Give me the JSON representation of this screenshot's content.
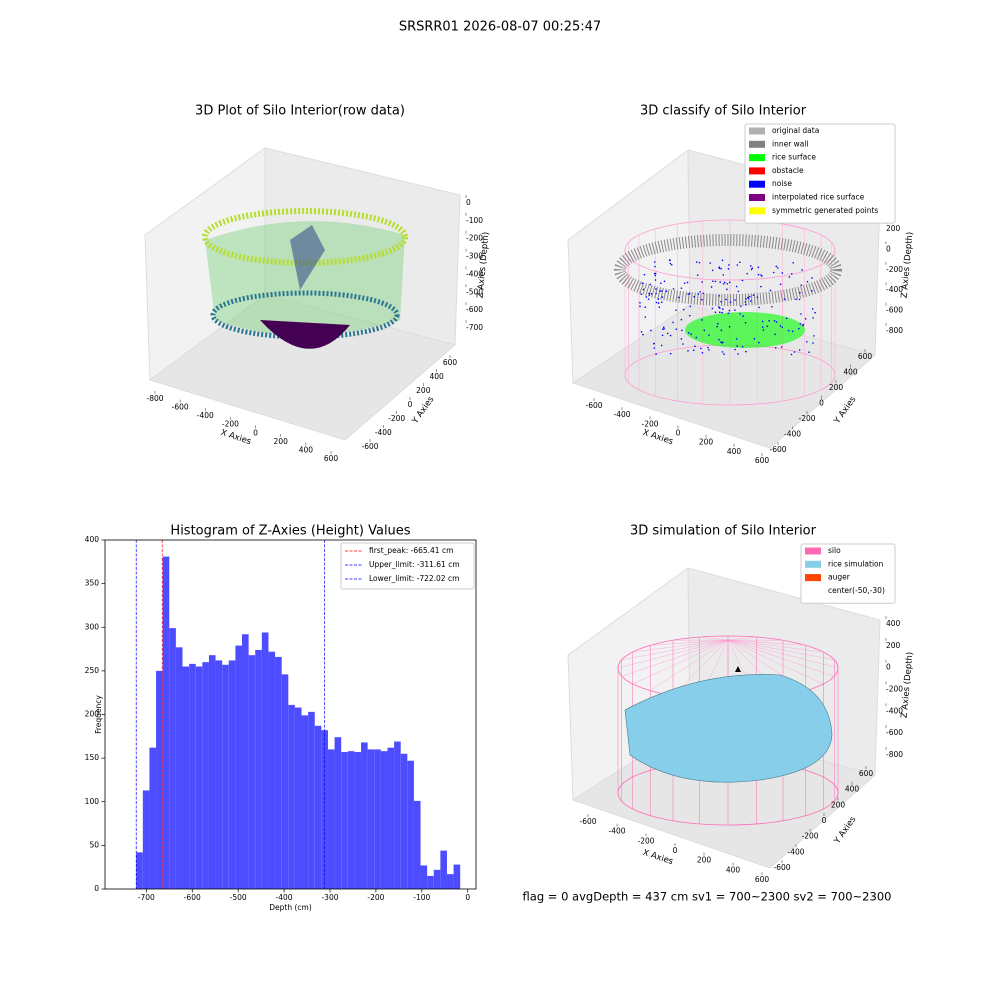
{
  "title": "SRSRR01 2026-08-07 00:25:47",
  "footer": "flag = 0     avgDepth = 437 cm  sv1 = 700~2300  sv2 = 700~2300",
  "chart_data": [
    {
      "type": "scatter3d",
      "title": "3D Plot of Silo Interior(row data)",
      "xlabel": "X Axies",
      "ylabel": "Y Axies",
      "zlabel": "Z Axies (Depth)",
      "xlim": [
        -800,
        600
      ],
      "xticks": [
        -800,
        -600,
        -400,
        -200,
        0,
        200,
        400,
        600
      ],
      "ylim": [
        -600,
        600
      ],
      "yticks": [
        -600,
        -400,
        -200,
        0,
        200,
        400,
        600
      ],
      "zlim": [
        0,
        -700
      ],
      "zticks": [
        0,
        -100,
        -200,
        -300,
        -400,
        -500,
        -600,
        -700
      ]
    },
    {
      "type": "scatter3d",
      "title": "3D classify of Silo Interior",
      "xlabel": "X Axies",
      "ylabel": "Y Axies",
      "zlabel": "Z Axies (Depth)",
      "xlim": [
        -600,
        600
      ],
      "xticks": [
        -600,
        -400,
        -200,
        0,
        200,
        400,
        600
      ],
      "ylim": [
        -600,
        600
      ],
      "yticks": [
        -600,
        -400,
        -200,
        0,
        200,
        400,
        600
      ],
      "zlim": [
        -800,
        200
      ],
      "zticks": [
        -800,
        -600,
        -400,
        -200,
        0,
        200
      ],
      "legend": "upper right",
      "series": [
        {
          "name": "original data",
          "color": "#b0b0b0"
        },
        {
          "name": "inner wall",
          "color": "#808080"
        },
        {
          "name": "rice surface",
          "color": "#00ff00"
        },
        {
          "name": "obstacle",
          "color": "#ff0000"
        },
        {
          "name": "noise",
          "color": "#0000ff"
        },
        {
          "name": "interpolated rice surface",
          "color": "#800080"
        },
        {
          "name": "symmetric generated points",
          "color": "#ffff00"
        }
      ]
    },
    {
      "type": "histogram",
      "title": "Histogram of Z-Axies (Height) Values",
      "xlabel": "Depth (cm)",
      "ylabel": "Frequency",
      "color": "#4d4dff",
      "bins": [
        -722,
        -707.6,
        -693.2,
        -678.8,
        -664.4,
        -650,
        -635.6,
        -621.2,
        -606.8,
        -592.4,
        -578,
        -563.6,
        -549.2,
        -534.8,
        -520.4,
        -506,
        -491.6,
        -477.2,
        -462.8,
        -448.4,
        -434,
        -419.6,
        -405.2,
        -390.8,
        -376.4,
        -362,
        -347.6,
        -333.2,
        -318.8,
        -304.4,
        -290,
        -275.6,
        -261.2,
        -246.8,
        -232.4,
        -218,
        -203.6,
        -189.2,
        -174.8,
        -160.4,
        -146,
        -131.6,
        -117.2,
        -102.8,
        -88.4,
        -74,
        -59.6,
        -45.2,
        -30.8,
        -16.4
      ],
      "counts": [
        42,
        113,
        162,
        250,
        381,
        299,
        277,
        255,
        258,
        255,
        260,
        268,
        262,
        257,
        262,
        279,
        292,
        268,
        274,
        294,
        272,
        266,
        246,
        211,
        208,
        199,
        203,
        187,
        182,
        160,
        174,
        157,
        158,
        157,
        168,
        160,
        160,
        158,
        162,
        169,
        155,
        147,
        101,
        27,
        15,
        22,
        44,
        17,
        28
      ],
      "xlim": [
        -790,
        18
      ],
      "xticks": [
        -700,
        -600,
        -500,
        -400,
        -300,
        -200,
        -100,
        0
      ],
      "ylim": [
        0,
        400
      ],
      "yticks": [
        0,
        50,
        100,
        150,
        200,
        250,
        300,
        350,
        400
      ],
      "legend": "upper right",
      "lines": [
        {
          "name": "first_peak: -665.41 cm",
          "value": -665.41,
          "color": "#ff0000"
        },
        {
          "name": "Upper_limit: -311.61 cm",
          "value": -311.61,
          "color": "#0000ff"
        },
        {
          "name": "Lower_limit: -722.02 cm",
          "value": -722.02,
          "color": "#0000ff"
        }
      ]
    },
    {
      "type": "surface3d",
      "title": "3D simulation of Silo Interior",
      "xlabel": "X Axies",
      "ylabel": "Y Axies",
      "zlabel": "Z Axies (Depth)",
      "xlim": [
        -600,
        600
      ],
      "xticks": [
        -600,
        -400,
        -200,
        0,
        200,
        400,
        600
      ],
      "ylim": [
        -600,
        600
      ],
      "yticks": [
        -600,
        -400,
        -200,
        0,
        200,
        400,
        600
      ],
      "zlim": [
        -800,
        400
      ],
      "zticks": [
        -800,
        -600,
        -400,
        -200,
        0,
        200,
        400
      ],
      "legend": "upper right",
      "series": [
        {
          "name": "silo",
          "color": "#ff69b4"
        },
        {
          "name": "rice simulation",
          "color": "#87ceeb"
        },
        {
          "name": "auger",
          "color": "#ff4500"
        },
        {
          "name": "center(-50,-30)",
          "color": null
        }
      ]
    }
  ]
}
